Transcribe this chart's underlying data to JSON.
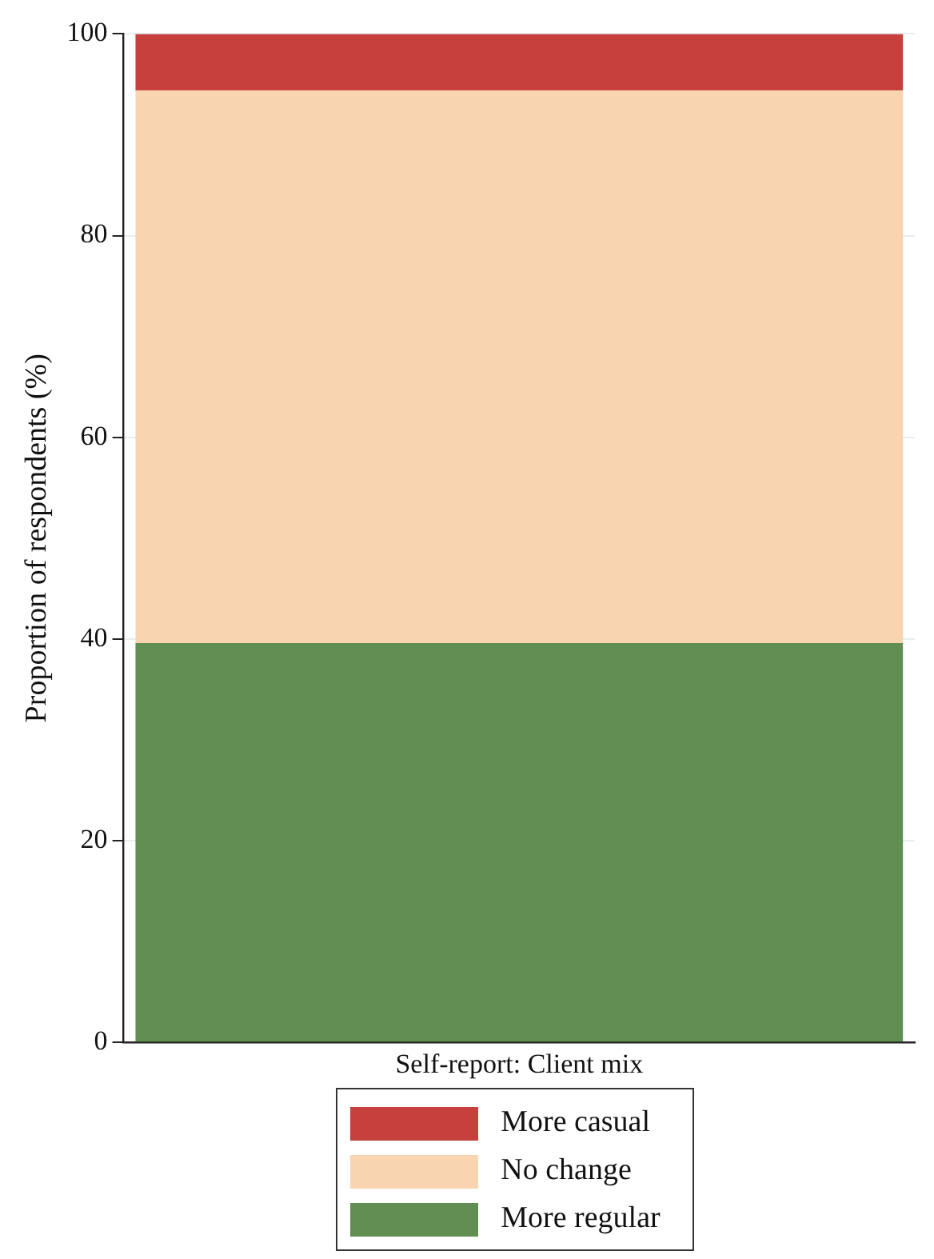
{
  "chart_data": {
    "type": "bar",
    "stacked": true,
    "xlabel": "Self-report: Client mix",
    "ylabel": "Proportion of respondents (%)",
    "categories": [
      null
    ],
    "series": [
      {
        "name": "More regular",
        "color": "#618f53",
        "values": [
          39.6
        ]
      },
      {
        "name": "No change",
        "color": "#f8d5b0",
        "values": [
          54.8
        ]
      },
      {
        "name": "More casual",
        "color": "#c6413d",
        "values": [
          5.6
        ]
      }
    ],
    "ylim": [
      0,
      100
    ],
    "yticks": [
      0,
      20,
      40,
      60,
      80,
      100
    ],
    "grid": "y",
    "legend": "bottom"
  }
}
